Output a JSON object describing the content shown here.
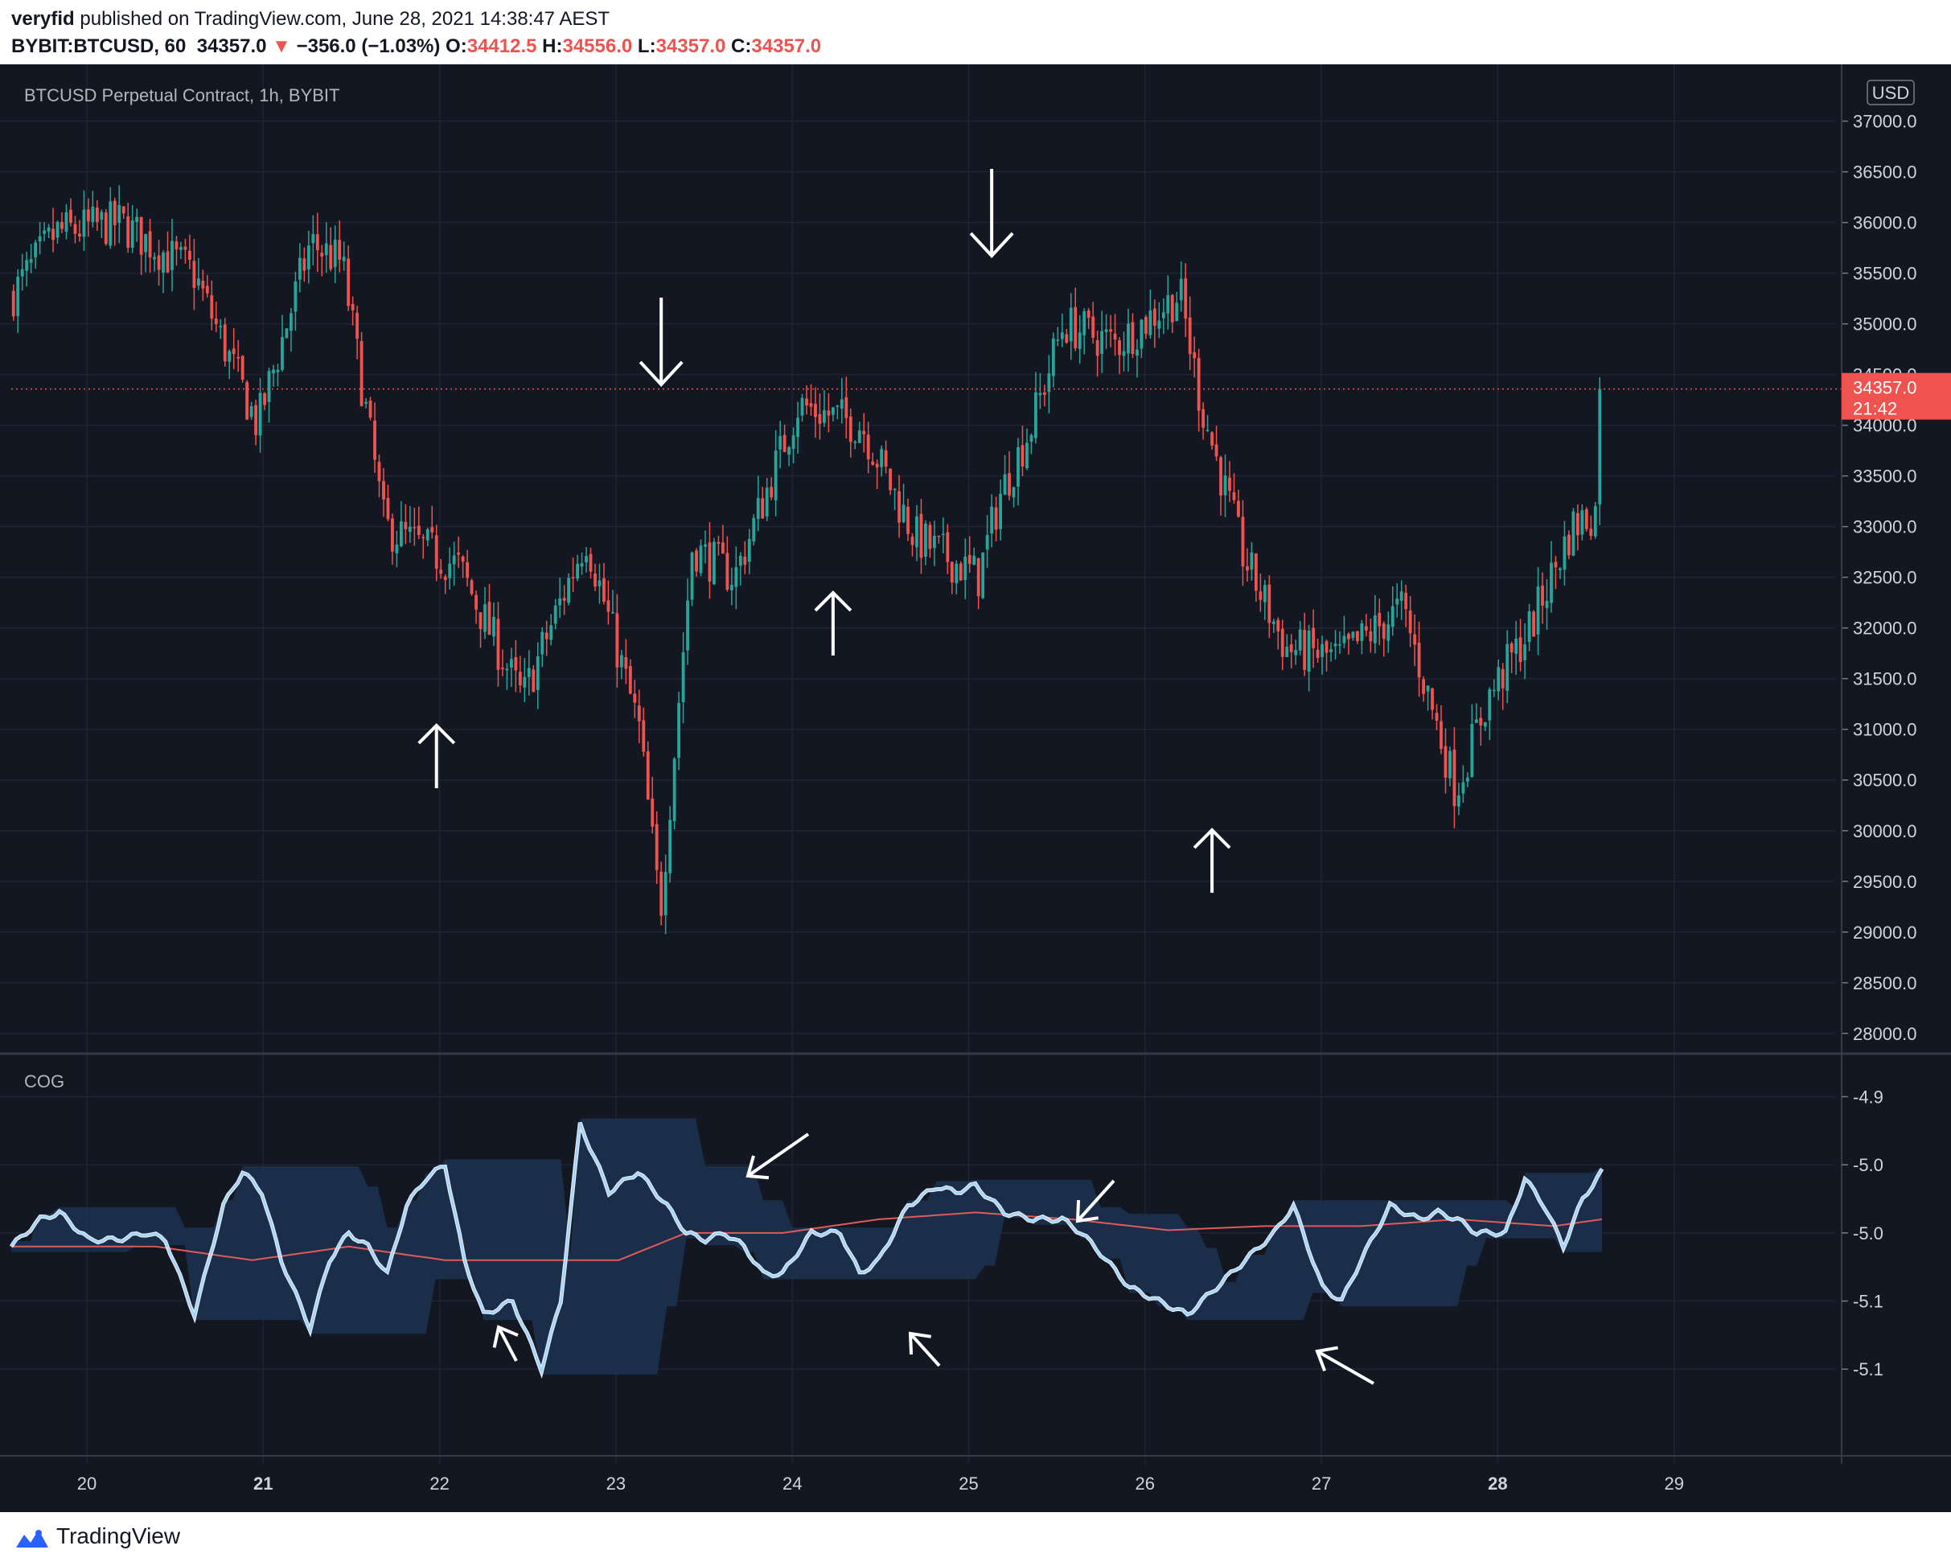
{
  "header": {
    "publisher": "veryfid",
    "published_text": " published on TradingView.com, June 28, 2021 14:38:47 AEST",
    "symbol_interval": "BYBIT:BTCUSD, 60",
    "last": "34357.0",
    "change_arrow": "▼",
    "change": "−356.0 (−1.03%)",
    "o_label": "O:",
    "o": "34412.5",
    "h_label": "H:",
    "h": "34556.0",
    "l_label": "L:",
    "l": "34357.0",
    "c_label": "C:",
    "c": "34357.0"
  },
  "footer": {
    "brand": "TradingView",
    "logo_icon": "tradingview-logo-icon"
  },
  "colors": {
    "bg": "#131722",
    "up": "#26a69a",
    "down": "#ef5350",
    "grid": "#1f2433",
    "cog": "#9fd3ff",
    "signal": "#e05a5a",
    "band": "#1c3350"
  },
  "chart_data": [
    {
      "type": "candlestick",
      "title": "BTCUSD Perpetual Contract, 1h, BYBIT",
      "currency": "USD",
      "ylim": [
        27800,
        37100
      ],
      "yticks": [
        "37000.0",
        "36500.0",
        "36000.0",
        "35500.0",
        "35000.0",
        "34500.0",
        "34000.0",
        "33500.0",
        "33000.0",
        "32500.0",
        "32000.0",
        "31500.0",
        "31000.0",
        "30500.0",
        "30000.0",
        "29500.0",
        "29000.0",
        "28500.0",
        "28000.0"
      ],
      "xticks": [
        "20",
        "21",
        "22",
        "23",
        "24",
        "25",
        "26",
        "27",
        "28",
        "29"
      ],
      "last_price": "34357.0",
      "countdown": "21:42",
      "anchors": {
        "t": [
          0,
          8,
          20,
          34,
          46,
          56,
          62,
          70,
          84,
          96,
          108,
          118,
          122,
          128,
          136,
          148,
          160,
          170,
          182,
          186,
          192,
          198,
          208,
          220,
          224,
          232,
          240,
          250,
          262,
          272,
          278,
          286,
          294,
          300
        ],
        "price": [
          35300,
          35900,
          36000,
          35500,
          34000,
          35800,
          35600,
          33000,
          32600,
          31300,
          32900,
          31000,
          29200,
          32800,
          32500,
          34200,
          34000,
          32900,
          32500,
          33300,
          34000,
          35000,
          34800,
          35300,
          34200,
          32700,
          31800,
          31700,
          32200,
          30400,
          31300,
          32000,
          33000,
          33200
        ]
      },
      "candle_count": 361,
      "annotations": [
        {
          "kind": "arrow",
          "dir": "up",
          "bar": 96
        },
        {
          "kind": "arrow",
          "dir": "down",
          "bar": 147
        },
        {
          "kind": "arrow",
          "dir": "up",
          "bar": 186
        },
        {
          "kind": "arrow",
          "dir": "down",
          "bar": 222
        },
        {
          "kind": "arrow",
          "dir": "up",
          "bar": 272
        }
      ]
    },
    {
      "type": "line",
      "title": "COG",
      "ylim": [
        -5.14,
        -4.895
      ],
      "yticks": [
        "-4.9",
        "-5.0",
        "-5.0",
        "-5.1",
        "-5.1"
      ],
      "ytick_values": [
        -4.9,
        -4.95,
        -5.0,
        -5.05,
        -5.1
      ],
      "series": [
        {
          "role": "cog",
          "color": "#9fd3ff",
          "t": [
            0,
            6,
            10,
            16,
            22,
            28,
            32,
            38,
            44,
            48,
            52,
            56,
            62,
            66,
            70,
            74,
            78,
            82,
            86,
            90,
            94,
            98,
            104,
            110,
            114,
            118,
            124,
            130,
            136,
            140,
            144,
            148,
            152,
            156,
            160,
            166,
            172,
            176,
            180,
            186,
            192,
            196,
            200,
            206,
            212,
            218,
            222,
            226,
            232,
            238,
            244,
            250,
            256,
            262,
            266,
            272,
            276,
            280,
            286,
            292,
            296,
            300,
            304,
            310,
            314,
            318,
            322,
            326,
            330
          ],
          "values": [
            -5.01,
            -4.99,
            -4.985,
            -5.005,
            -5.005,
            -5.0,
            -5.005,
            -5.06,
            -4.98,
            -4.955,
            -4.97,
            -5.02,
            -5.07,
            -5.02,
            -5.0,
            -5.01,
            -5.03,
            -4.98,
            -4.96,
            -4.95,
            -5.02,
            -5.06,
            -5.05,
            -5.1,
            -5.05,
            -4.92,
            -4.97,
            -4.955,
            -4.98,
            -5.0,
            -5.005,
            -5.0,
            -5.01,
            -5.03,
            -5.03,
            -5.0,
            -5.0,
            -5.03,
            -5.02,
            -4.98,
            -4.966,
            -4.97,
            -4.965,
            -4.985,
            -4.99,
            -4.99,
            -5.0,
            -5.015,
            -5.04,
            -5.05,
            -5.06,
            -5.04,
            -5.02,
            -5.0,
            -4.98,
            -5.04,
            -5.05,
            -5.02,
            -4.98,
            -4.99,
            -4.985,
            -4.99,
            -5.0,
            -5.0,
            -4.96,
            -4.98,
            -5.01,
            -4.975,
            -4.955
          ]
        },
        {
          "role": "signal",
          "color": "#e05a5a",
          "t": [
            0,
            30,
            50,
            70,
            90,
            110,
            126,
            140,
            160,
            180,
            200,
            220,
            240,
            260,
            280,
            300,
            320,
            330
          ],
          "values": [
            -5.01,
            -5.01,
            -5.02,
            -5.01,
            -5.02,
            -5.02,
            -5.02,
            -5.0,
            -5.0,
            -4.99,
            -4.985,
            -4.99,
            -4.998,
            -4.995,
            -4.995,
            -4.99,
            -4.995,
            -4.99
          ]
        }
      ]
    }
  ]
}
